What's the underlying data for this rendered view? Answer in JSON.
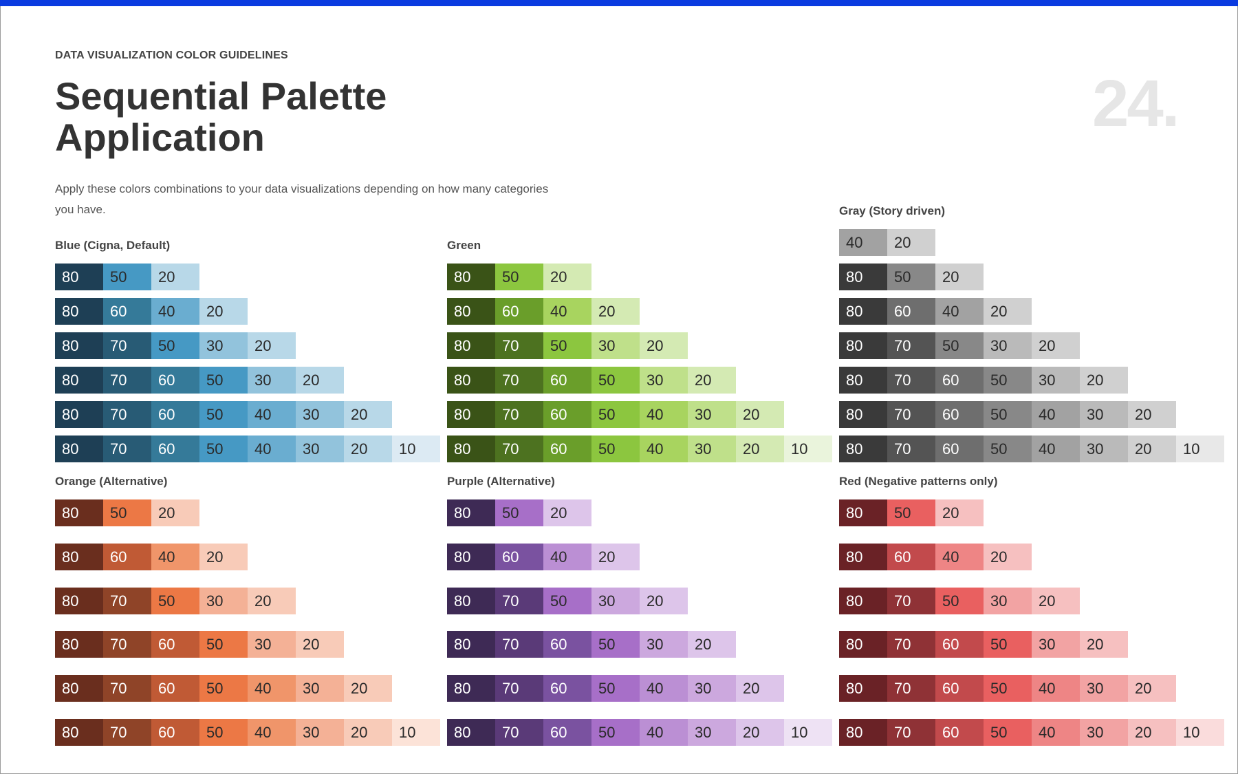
{
  "header": {
    "eyebrow": "DATA VISUALIZATION COLOR GUIDELINES",
    "title_line1": "Sequential Palette",
    "title_line2": "Application",
    "page_number": "24.",
    "description": "Apply these colors combinations to your data visualizations depending on how many categories you have."
  },
  "accent_color": "#0a3be0",
  "palettes": [
    {
      "name": "Blue (Cigna, Default)",
      "colors": {
        "80": "#1e3f55",
        "70": "#285b75",
        "60": "#357a99",
        "50": "#4699c4",
        "40": "#6aadd0",
        "30": "#92c3dc",
        "20": "#b8d8e8",
        "10": "#dceaf3"
      },
      "rows": [
        [
          "80",
          "50",
          "20"
        ],
        [
          "80",
          "60",
          "40",
          "20"
        ],
        [
          "80",
          "70",
          "50",
          "30",
          "20"
        ],
        [
          "80",
          "70",
          "60",
          "50",
          "30",
          "20"
        ],
        [
          "80",
          "70",
          "60",
          "50",
          "40",
          "30",
          "20"
        ],
        [
          "80",
          "70",
          "60",
          "50",
          "40",
          "30",
          "20",
          "10"
        ]
      ]
    },
    {
      "name": "Green",
      "colors": {
        "80": "#3a5317",
        "70": "#4d7220",
        "60": "#6a9e2a",
        "50": "#8cc63f",
        "40": "#a8d45f",
        "30": "#bfe08a",
        "20": "#d4eab3",
        "10": "#eaf4dc"
      },
      "rows": [
        [
          "80",
          "50",
          "20"
        ],
        [
          "80",
          "60",
          "40",
          "20"
        ],
        [
          "80",
          "70",
          "50",
          "30",
          "20"
        ],
        [
          "80",
          "70",
          "60",
          "50",
          "30",
          "20"
        ],
        [
          "80",
          "70",
          "60",
          "50",
          "40",
          "30",
          "20"
        ],
        [
          "80",
          "70",
          "60",
          "50",
          "40",
          "30",
          "20",
          "10"
        ]
      ]
    },
    {
      "name": "Gray (Story driven)",
      "colors": {
        "80": "#3a3a3a",
        "70": "#545454",
        "60": "#6e6e6e",
        "50": "#888888",
        "40": "#a2a2a2",
        "30": "#bababa",
        "20": "#d0d0d0",
        "10": "#e8e8e8"
      },
      "rows": [
        [
          "40",
          "20"
        ],
        [
          "80",
          "50",
          "20"
        ],
        [
          "80",
          "60",
          "40",
          "20"
        ],
        [
          "80",
          "70",
          "50",
          "30",
          "20"
        ],
        [
          "80",
          "70",
          "60",
          "50",
          "30",
          "20"
        ],
        [
          "80",
          "70",
          "60",
          "50",
          "40",
          "30",
          "20"
        ],
        [
          "80",
          "70",
          "60",
          "50",
          "40",
          "30",
          "20",
          "10"
        ]
      ]
    },
    {
      "name": "Orange (Alternative)",
      "colors": {
        "80": "#6a2e1e",
        "70": "#8f4428",
        "60": "#c05a35",
        "50": "#ec7845",
        "40": "#f0956a",
        "30": "#f4b196",
        "20": "#f8cbb8",
        "10": "#fce3d8"
      },
      "rows": [
        [
          "80",
          "50",
          "20"
        ],
        [
          "80",
          "60",
          "40",
          "20"
        ],
        [
          "80",
          "70",
          "50",
          "30",
          "20"
        ],
        [
          "80",
          "70",
          "60",
          "50",
          "30",
          "20"
        ],
        [
          "80",
          "70",
          "60",
          "50",
          "40",
          "30",
          "20"
        ],
        [
          "80",
          "70",
          "60",
          "50",
          "40",
          "30",
          "20",
          "10"
        ]
      ]
    },
    {
      "name": "Purple (Alternative)",
      "colors": {
        "80": "#3e2a55",
        "70": "#5a3a78",
        "60": "#7a52a0",
        "50": "#a76fc8",
        "40": "#bb8fd4",
        "30": "#cca8de",
        "20": "#ddc5ea",
        "10": "#eee2f4"
      },
      "rows": [
        [
          "80",
          "50",
          "20"
        ],
        [
          "80",
          "60",
          "40",
          "20"
        ],
        [
          "80",
          "70",
          "50",
          "30",
          "20"
        ],
        [
          "80",
          "70",
          "60",
          "50",
          "30",
          "20"
        ],
        [
          "80",
          "70",
          "60",
          "50",
          "40",
          "30",
          "20"
        ],
        [
          "80",
          "70",
          "60",
          "50",
          "40",
          "30",
          "20",
          "10"
        ]
      ]
    },
    {
      "name": "Red (Negative patterns only)",
      "colors": {
        "80": "#6a2226",
        "70": "#8f3236",
        "60": "#c24a4c",
        "50": "#e96060",
        "40": "#ee8585",
        "30": "#f2a3a3",
        "20": "#f6c0c0",
        "10": "#fadcdc"
      },
      "rows": [
        [
          "80",
          "50",
          "20"
        ],
        [
          "80",
          "60",
          "40",
          "20"
        ],
        [
          "80",
          "70",
          "50",
          "30",
          "20"
        ],
        [
          "80",
          "70",
          "60",
          "50",
          "30",
          "20"
        ],
        [
          "80",
          "70",
          "60",
          "50",
          "40",
          "30",
          "20"
        ],
        [
          "80",
          "70",
          "60",
          "50",
          "40",
          "30",
          "20",
          "10"
        ]
      ]
    }
  ]
}
